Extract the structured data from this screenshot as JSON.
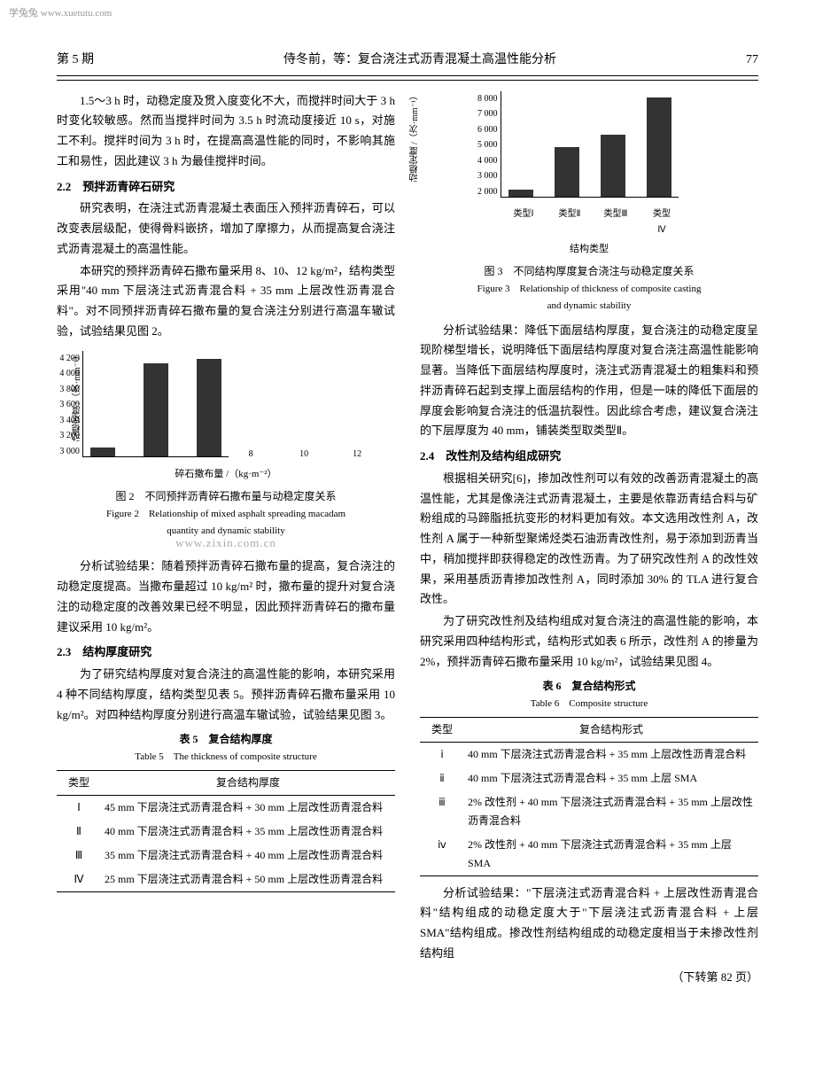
{
  "watermark_top": "学兔兔 www.xuetutu.com",
  "header": {
    "issue": "第 5 期",
    "title": "侍冬前，等：复合浇注式沥青混凝土高温性能分析",
    "page": "77"
  },
  "left": {
    "p1": "1.5～3 h 时，动稳定度及贯入度变化不大，而搅拌时间大于 3 h 时变化较敏感。然而当搅拌时间为 3.5 h 时流动度接近 10 s，对施工不利。搅拌时间为 3 h 时，在提高高温性能的同时，不影响其施工和易性，因此建议 3 h 为最佳搅拌时间。",
    "s22": "2.2　预拌沥青碎石研究",
    "p2": "研究表明，在浇注式沥青混凝土表面压入预拌沥青碎石，可以改变表层级配，使得骨料嵌挤，增加了摩擦力，从而提高复合浇注式沥青混凝土的高温性能。",
    "p3": "本研究的预拌沥青碎石撒布量采用 8、10、12 kg/m²，结构类型采用\"40 mm 下层浇注式沥青混合料 + 35 mm 上层改性沥青混合料\"。对不同预拌沥青碎石撒布量的复合浇注分别进行高温车辙试验，试验结果见图 2。",
    "fig2": {
      "ylabel": "动稳定度 /（次·mm⁻¹）",
      "yticks": [
        "4 200",
        "4 000",
        "3 800",
        "3 600",
        "3 400",
        "3 200",
        "3 000"
      ],
      "xlabel": "碎石撒布量 /（kg·m⁻²）",
      "xticks": [
        "8",
        "10",
        "12"
      ],
      "values": [
        3100,
        4050,
        4100
      ],
      "ymin": 3000,
      "yrange": 1200,
      "cap_cn": "图 2　不同预拌沥青碎石撒布量与动稳定度关系",
      "cap_en1": "Figure 2　Relationship of mixed asphalt spreading macadam",
      "cap_en2": "quantity and dynamic stability"
    },
    "wm": "www.zixin.com.cn",
    "p4": "分析试验结果：随着预拌沥青碎石撒布量的提高，复合浇注的动稳定度提高。当撒布量超过 10 kg/m² 时，撒布量的提升对复合浇注的动稳定度的改善效果已经不明显，因此预拌沥青碎石的撒布量建议采用 10 kg/m²。",
    "s23": "2.3　结构厚度研究",
    "p5": "为了研究结构厚度对复合浇注的高温性能的影响，本研究采用 4 种不同结构厚度，结构类型见表 5。预拌沥青碎石撒布量采用 10 kg/m²。对四种结构厚度分别进行高温车辙试验，试验结果见图 3。",
    "t5": {
      "cap_cn": "表 5　复合结构厚度",
      "cap_en": "Table 5　The thickness of composite structure",
      "h1": "类型",
      "h2": "复合结构厚度",
      "rows": [
        [
          "Ⅰ",
          "45 mm 下层浇注式沥青混合料 + 30 mm 上层改性沥青混合料"
        ],
        [
          "Ⅱ",
          "40 mm 下层浇注式沥青混合料 + 35 mm 上层改性沥青混合料"
        ],
        [
          "Ⅲ",
          "35 mm 下层浇注式沥青混合料 + 40 mm 上层改性沥青混合料"
        ],
        [
          "Ⅳ",
          "25 mm 下层浇注式沥青混合料 + 50 mm 上层改性沥青混合料"
        ]
      ]
    }
  },
  "right": {
    "fig3": {
      "ylabel": "动稳定度 /（次·mm⁻¹）",
      "yticks": [
        "8 000",
        "7 000",
        "6 000",
        "5 000",
        "4 000",
        "3 000",
        "2 000"
      ],
      "xlabel": "结构类型",
      "xticks": [
        "类型Ⅰ",
        "类型Ⅱ",
        "类型Ⅲ",
        "类型Ⅳ"
      ],
      "values": [
        2400,
        4800,
        5500,
        7600
      ],
      "ymin": 2000,
      "yrange": 6000,
      "cap_cn": "图 3　不同结构厚度复合浇注与动稳定度关系",
      "cap_en1": "Figure 3　Relationship of thickness of composite casting",
      "cap_en2": "and dynamic stability"
    },
    "p1": "分析试验结果：降低下面层结构厚度，复合浇注的动稳定度呈现阶梯型增长，说明降低下面层结构厚度对复合浇注高温性能影响显著。当降低下面层结构厚度时，浇注式沥青混凝土的粗集料和预拌沥青碎石起到支撑上面层结构的作用，但是一味的降低下面层的厚度会影响复合浇注的低温抗裂性。因此综合考虑，建议复合浇注的下层厚度为 40 mm，铺装类型取类型Ⅱ。",
    "s24": "2.4　改性剂及结构组成研究",
    "p2": "根据相关研究[6]，掺加改性剂可以有效的改善沥青混凝土的高温性能，尤其是像浇注式沥青混凝土，主要是依靠沥青结合料与矿粉组成的马蹄脂抵抗变形的材料更加有效。本文选用改性剂 A，改性剂 A 属于一种新型聚烯烃类石油沥青改性剂，易于添加到沥青当中，稍加搅拌即获得稳定的改性沥青。为了研究改性剂 A 的改性效果，采用基质沥青掺加改性剂 A，同时添加 30% 的 TLA 进行复合改性。",
    "p3": "为了研究改性剂及结构组成对复合浇注的高温性能的影响，本研究采用四种结构形式，结构形式如表 6 所示，改性剂 A 的掺量为 2%，预拌沥青碎石撒布量采用 10 kg/m²，试验结果见图 4。",
    "t6": {
      "cap_cn": "表 6　复合结构形式",
      "cap_en": "Table 6　Composite structure",
      "h1": "类型",
      "h2": "复合结构形式",
      "rows": [
        [
          "ⅰ",
          "40 mm 下层浇注式沥青混合料 + 35 mm 上层改性沥青混合料"
        ],
        [
          "ⅱ",
          "40 mm 下层浇注式沥青混合料 + 35 mm 上层 SMA"
        ],
        [
          "ⅲ",
          "2% 改性剂 + 40 mm 下层浇注式沥青混合料 + 35 mm 上层改性沥青混合料"
        ],
        [
          "ⅳ",
          "2% 改性剂 + 40 mm 下层浇注式沥青混合料 + 35 mm 上层 SMA"
        ]
      ]
    },
    "p4": "分析试验结果：\"下层浇注式沥青混合料 + 上层改性沥青混合料\"结构组成的动稳定度大于\"下层浇注式沥青混合料 + 上层 SMA\"结构组成。掺改性剂结构组成的动稳定度相当于未掺改性剂结构组",
    "continue": "（下转第 82 页）"
  }
}
